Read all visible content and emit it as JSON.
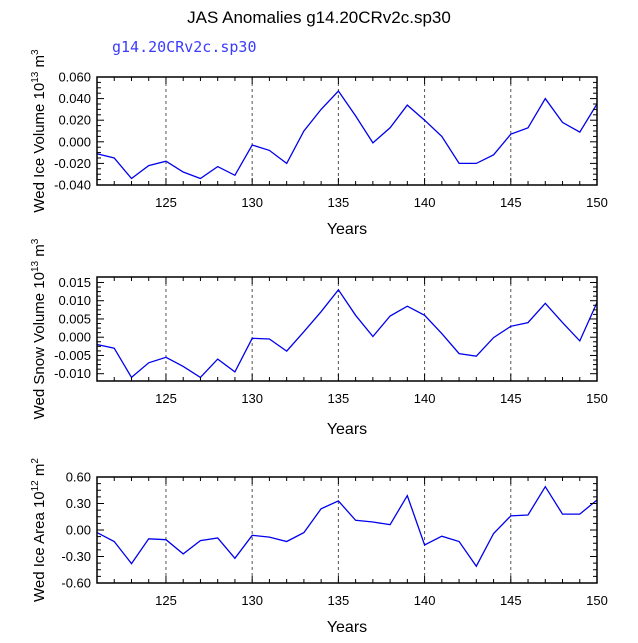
{
  "header": {
    "title": "JAS Anomalies g14.20CRv2c.sp30",
    "case_label": "g14.20CRv2c.sp30"
  },
  "style": {
    "line_color": "#0000ee",
    "axis_color": "#000000",
    "grid_color": "#555555"
  },
  "chart_data": [
    {
      "type": "line",
      "title": "",
      "xlabel": "Years",
      "ylabel": "Wed Ice Volume 10",
      "ylabel_exp": "13",
      "ylabel_unit": " m",
      "ylabel_unit_exp": "3",
      "xlim": [
        121,
        150
      ],
      "ylim": [
        -0.04,
        0.06
      ],
      "xticks": [
        125,
        130,
        135,
        140,
        145,
        150
      ],
      "xtick_labels": [
        "125",
        "130",
        "135",
        "140",
        "145",
        "150"
      ],
      "yticks": [
        -0.04,
        -0.02,
        0.0,
        0.02,
        0.04,
        0.06
      ],
      "ytick_labels": [
        "-0.040",
        "-0.020",
        "0.000",
        "0.020",
        "0.040",
        "0.060"
      ],
      "vgrid": [
        125,
        130,
        135,
        140,
        145
      ],
      "series": [
        {
          "x": [
            121,
            122,
            123,
            124,
            125,
            126,
            127,
            128,
            129,
            130,
            131,
            132,
            133,
            134,
            135,
            136,
            137,
            138,
            139,
            140,
            141,
            142,
            143,
            144,
            145,
            146,
            147,
            148,
            149,
            150
          ],
          "values": [
            -0.011,
            -0.015,
            -0.034,
            -0.022,
            -0.018,
            -0.028,
            -0.034,
            -0.023,
            -0.031,
            -0.003,
            -0.008,
            -0.02,
            0.01,
            0.03,
            0.047,
            0.024,
            -0.001,
            0.013,
            0.034,
            0.02,
            0.005,
            -0.02,
            -0.02,
            -0.012,
            0.007,
            0.013,
            0.04,
            0.018,
            0.009,
            0.035
          ]
        }
      ]
    },
    {
      "type": "line",
      "title": "",
      "xlabel": "Years",
      "ylabel": "Wed Snow Volume 10",
      "ylabel_exp": "13",
      "ylabel_unit": " m",
      "ylabel_unit_exp": "3",
      "xlim": [
        121,
        150
      ],
      "ylim": [
        -0.012,
        0.0165
      ],
      "xticks": [
        125,
        130,
        135,
        140,
        145,
        150
      ],
      "xtick_labels": [
        "125",
        "130",
        "135",
        "140",
        "145",
        "150"
      ],
      "yticks": [
        -0.01,
        -0.005,
        0.0,
        0.005,
        0.01,
        0.015
      ],
      "ytick_labels": [
        "-0.010",
        "-0.005",
        "0.000",
        "0.005",
        "0.010",
        "0.015"
      ],
      "vgrid": [
        125,
        130,
        135,
        140,
        145
      ],
      "series": [
        {
          "x": [
            121,
            122,
            123,
            124,
            125,
            126,
            127,
            128,
            129,
            130,
            131,
            132,
            133,
            134,
            135,
            136,
            137,
            138,
            139,
            140,
            141,
            142,
            143,
            144,
            145,
            146,
            147,
            148,
            149,
            150
          ],
          "values": [
            -0.002,
            -0.003,
            -0.011,
            -0.007,
            -0.0055,
            -0.008,
            -0.011,
            -0.006,
            -0.0095,
            -0.0003,
            -0.0005,
            -0.0038,
            0.0015,
            0.007,
            0.013,
            0.006,
            0.0002,
            0.0058,
            0.0085,
            0.006,
            0.001,
            -0.0045,
            -0.0052,
            -0.0001,
            0.003,
            0.004,
            0.0093,
            0.004,
            -0.001,
            0.0095
          ]
        }
      ]
    },
    {
      "type": "line",
      "title": "",
      "xlabel": "Years",
      "ylabel": "Wed Ice Area 10",
      "ylabel_exp": "12",
      "ylabel_unit": " m",
      "ylabel_unit_exp": "2",
      "xlim": [
        121,
        150
      ],
      "ylim": [
        -0.6,
        0.6
      ],
      "xticks": [
        125,
        130,
        135,
        140,
        145,
        150
      ],
      "xtick_labels": [
        "125",
        "130",
        "135",
        "140",
        "145",
        "150"
      ],
      "yticks": [
        -0.6,
        -0.3,
        0.0,
        0.3,
        0.6
      ],
      "ytick_labels": [
        "-0.60",
        "-0.30",
        "0.00",
        "0.30",
        "0.60"
      ],
      "vgrid": [
        125,
        130,
        135,
        140,
        145
      ],
      "series": [
        {
          "x": [
            121,
            122,
            123,
            124,
            125,
            126,
            127,
            128,
            129,
            130,
            131,
            132,
            133,
            134,
            135,
            136,
            137,
            138,
            139,
            140,
            141,
            142,
            143,
            144,
            145,
            146,
            147,
            148,
            149,
            150
          ],
          "values": [
            -0.03,
            -0.13,
            -0.38,
            -0.1,
            -0.11,
            -0.27,
            -0.12,
            -0.09,
            -0.32,
            -0.06,
            -0.08,
            -0.13,
            -0.03,
            0.24,
            0.33,
            0.11,
            0.09,
            0.06,
            0.39,
            -0.17,
            -0.07,
            -0.13,
            -0.41,
            -0.04,
            0.16,
            0.17,
            0.49,
            0.18,
            0.18,
            0.34
          ]
        }
      ]
    }
  ]
}
